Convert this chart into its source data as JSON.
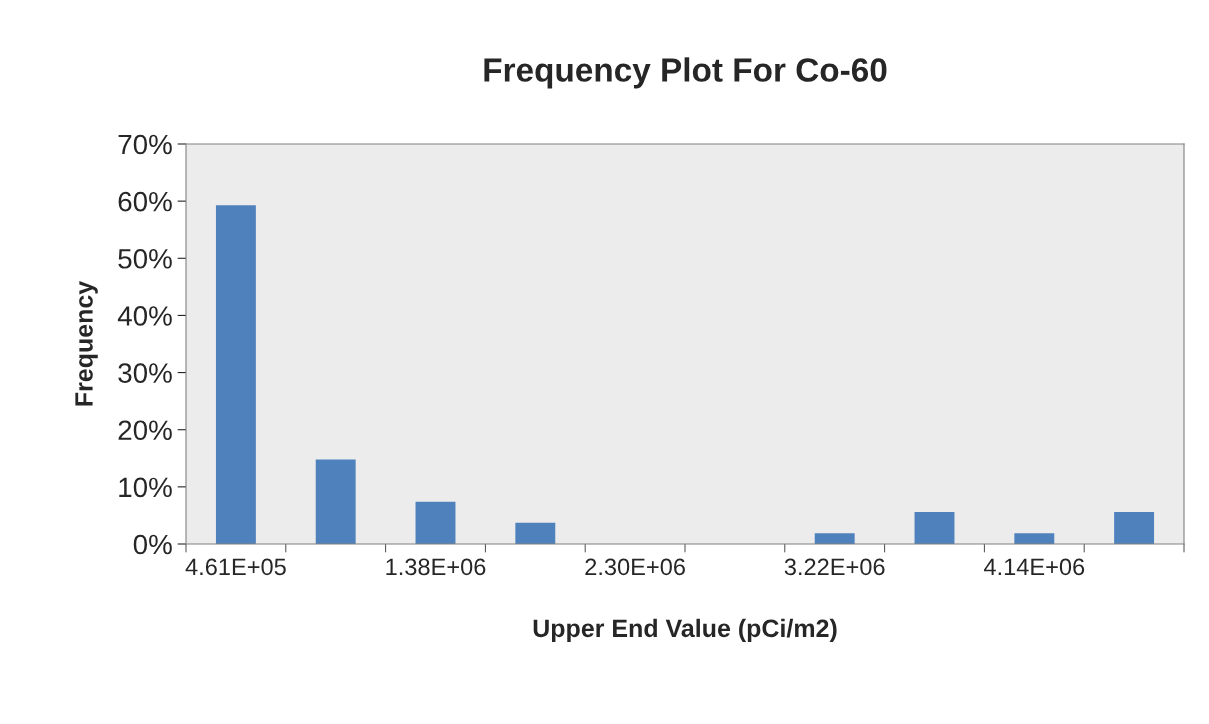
{
  "chart_data": {
    "type": "bar",
    "title": "Frequency Plot For Co-60",
    "xlabel": "Upper End Value (pCi/m2)",
    "ylabel": "Frequency",
    "categories": [
      "4.61E+05",
      null,
      "1.38E+06",
      null,
      "2.30E+06",
      null,
      "3.22E+06",
      null,
      "4.14E+06",
      null
    ],
    "values": [
      59.3,
      14.8,
      7.4,
      3.7,
      0,
      0,
      1.9,
      5.6,
      1.9,
      5.6
    ],
    "color": "#4f81bd",
    "ylim": [
      0,
      70
    ],
    "yticks": [
      {
        "value": 0,
        "label": "0%"
      },
      {
        "value": 10,
        "label": "10%"
      },
      {
        "value": 20,
        "label": "20%"
      },
      {
        "value": 30,
        "label": "30%"
      },
      {
        "value": 40,
        "label": "40%"
      },
      {
        "value": 50,
        "label": "50%"
      },
      {
        "value": 60,
        "label": "60%"
      },
      {
        "value": 70,
        "label": "70%"
      }
    ],
    "grid": false,
    "legend": false
  }
}
